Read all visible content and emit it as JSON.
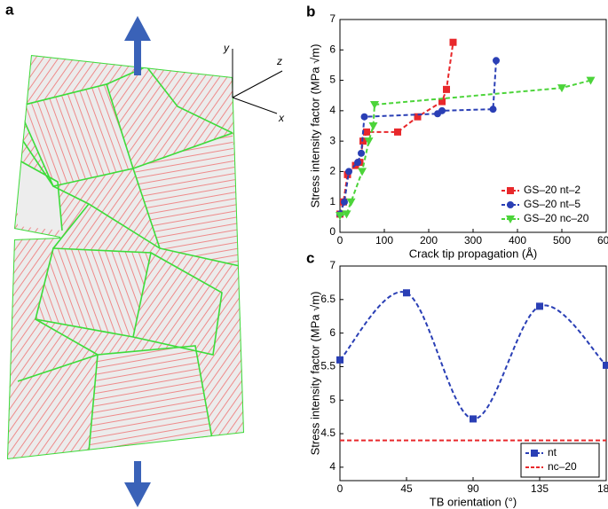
{
  "figure_a": {
    "panel_label": "a",
    "axis_labels": [
      "y",
      "z",
      "x"
    ]
  },
  "chart_data": [
    {
      "type": "line",
      "panel_label": "b",
      "x_label": "Crack tip propagation (Å)",
      "y_label": "Stress intensity factor (MPa √m)",
      "xlim": [
        0,
        600
      ],
      "xticks": [
        0,
        100,
        200,
        300,
        400,
        500,
        600
      ],
      "ylim": [
        0,
        7
      ],
      "yticks": [
        0,
        1,
        2,
        3,
        4,
        5,
        6,
        7
      ],
      "grid": false,
      "legend": "lower right",
      "legend_frame": false,
      "smooth": false,
      "series": [
        {
          "name": "GS–20 nt–2",
          "color": "#e8282b",
          "marker": "square",
          "linestyle": "dashed",
          "x": [
            0,
            8,
            17,
            35,
            45,
            52,
            60,
            130,
            175,
            230,
            240,
            255
          ],
          "values": [
            0.6,
            1.0,
            1.9,
            2.2,
            2.3,
            3.0,
            3.3,
            3.3,
            3.8,
            4.3,
            4.7,
            6.25
          ]
        },
        {
          "name": "GS–20 nt–5",
          "color": "#2a3fb5",
          "marker": "circle",
          "linestyle": "dashed",
          "x": [
            0,
            10,
            20,
            40,
            48,
            55,
            220,
            230,
            345,
            352
          ],
          "values": [
            0.6,
            1.0,
            2.0,
            2.3,
            2.6,
            3.8,
            3.9,
            4.0,
            4.05,
            5.65
          ]
        },
        {
          "name": "GS–20 nc–20",
          "color": "#4cd43a",
          "marker": "triangle-down",
          "linestyle": "dashed",
          "x": [
            0,
            15,
            25,
            50,
            65,
            75,
            78,
            500,
            565
          ],
          "values": [
            0.55,
            0.6,
            1.0,
            2.0,
            3.0,
            3.5,
            4.2,
            4.75,
            5.0
          ]
        }
      ]
    },
    {
      "type": "line",
      "panel_label": "c",
      "x_label": "TB orientation (°)",
      "y_label": "Stress intensity factor (MPa √m)",
      "xlim": [
        0,
        180
      ],
      "xticks": [
        0,
        45,
        90,
        135,
        180
      ],
      "ylim": [
        3.8,
        7
      ],
      "yticks": [
        4,
        4.5,
        5,
        5.5,
        6,
        6.5,
        7
      ],
      "grid": false,
      "legend": "lower right",
      "legend_frame": true,
      "smooth": true,
      "series": [
        {
          "name": "nt",
          "color": "#2a3fb5",
          "marker": "square",
          "linestyle": "dashed",
          "x": [
            0,
            45,
            90,
            135,
            180
          ],
          "values": [
            5.6,
            6.6,
            4.72,
            6.4,
            5.52
          ]
        },
        {
          "name": "nc–20",
          "color": "#e8282b",
          "marker": "none",
          "linestyle": "dashed",
          "x": [
            0,
            180
          ],
          "values": [
            4.4,
            4.4
          ]
        }
      ]
    }
  ]
}
